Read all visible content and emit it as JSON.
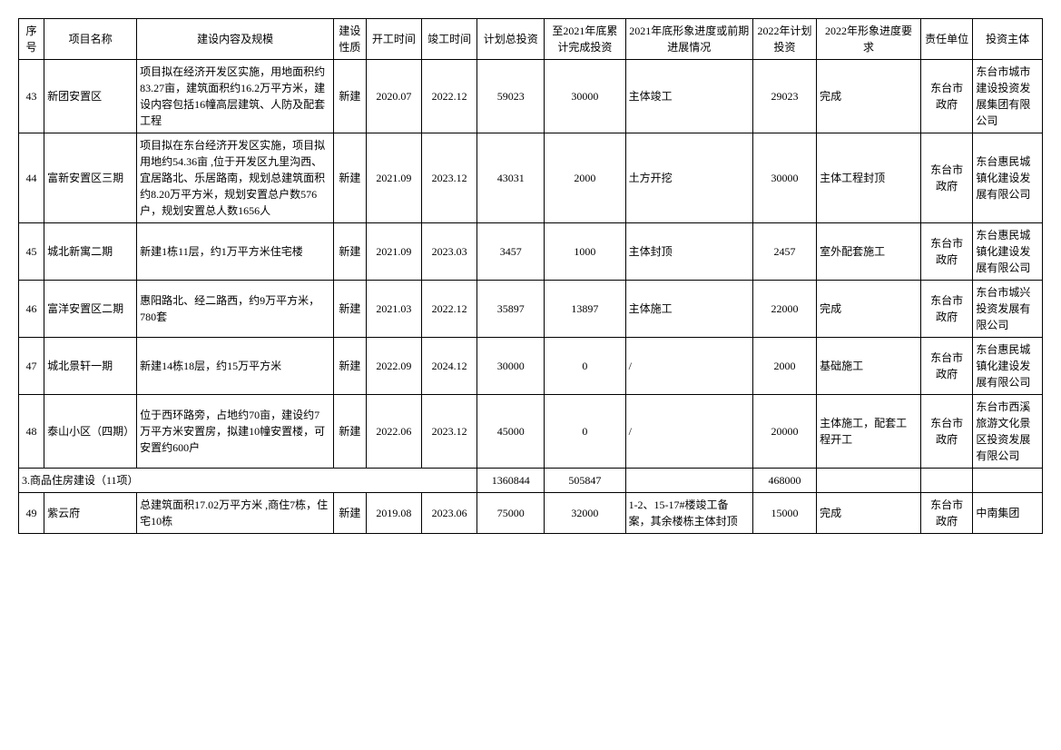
{
  "headers": {
    "seq": "序号",
    "name": "项目名称",
    "content": "建设内容及规模",
    "nature": "建设性质",
    "start": "开工时间",
    "end": "竣工时间",
    "total": "计划总投资",
    "done": "至2021年底累计完成投资",
    "progress": "2021年底形象进度或前期进展情况",
    "plan": "2022年计划投资",
    "req": "2022年形象进度要求",
    "resp": "责任单位",
    "invest": "投资主体"
  },
  "rows": [
    {
      "seq": "43",
      "name": "新团安置区",
      "content": "项目拟在经济开发区实施，用地面积约83.27亩，建筑面积约16.2万平方米，建设内容包括16幢高层建筑、人防及配套工程",
      "nature": "新建",
      "start": "2020.07",
      "end": "2022.12",
      "total": "59023",
      "done": "30000",
      "progress": "主体竣工",
      "plan": "29023",
      "req": "完成",
      "resp": "东台市 政府",
      "invest": "东台市城市建设投资发展集团有限公司"
    },
    {
      "seq": "44",
      "name": "富新安置区三期",
      "content": "项目拟在东台经济开发区实施，项目拟用地约54.36亩 ,位于开发区九里沟西、宜居路北、乐居路南，规划总建筑面积约8.20万平方米，规划安置总户数576户，规划安置总人数1656人",
      "nature": "新建",
      "start": "2021.09",
      "end": "2023.12",
      "total": "43031",
      "done": "2000",
      "progress": "土方开挖",
      "plan": "30000",
      "req": "主体工程封顶",
      "resp": "东台市 政府",
      "invest": "东台惠民城镇化建设发展有限公司"
    },
    {
      "seq": "45",
      "name": "城北新寓二期",
      "content": "新建1栋11层，约1万平方米住宅楼",
      "nature": "新建",
      "start": "2021.09",
      "end": "2023.03",
      "total": "3457",
      "done": "1000",
      "progress": "主体封顶",
      "plan": "2457",
      "req": "室外配套施工",
      "resp": "东台市 政府",
      "invest": "东台惠民城镇化建设发展有限公司"
    },
    {
      "seq": "46",
      "name": "富洋安置区二期",
      "content": "惠阳路北、经二路西，约9万平方米，780套",
      "nature": "新建",
      "start": "2021.03",
      "end": "2022.12",
      "total": "35897",
      "done": "13897",
      "progress": "主体施工",
      "plan": "22000",
      "req": "完成",
      "resp": "东台市 政府",
      "invest": "东台市城兴投资发展有限公司"
    },
    {
      "seq": "47",
      "name": "城北景轩一期",
      "content": "新建14栋18层，约15万平方米",
      "nature": "新建",
      "start": "2022.09",
      "end": "2024.12",
      "total": "30000",
      "done": "0",
      "progress": "/",
      "plan": "2000",
      "req": "基础施工",
      "resp": "东台市 政府",
      "invest": "东台惠民城镇化建设发展有限公司"
    },
    {
      "seq": "48",
      "name": "泰山小区（四期）",
      "content": "位于西环路旁，占地约70亩，建设约7万平方米安置房，拟建10幢安置楼，可安置约600户",
      "nature": "新建",
      "start": "2022.06",
      "end": "2023.12",
      "total": "45000",
      "done": "0",
      "progress": "/",
      "plan": "20000",
      "req": "主体施工，配套工程开工",
      "resp": "东台市 政府",
      "invest": "东台市西溪旅游文化景区投资发展有限公司"
    }
  ],
  "section": {
    "title": "3.商品住房建设（11项）",
    "total": "1360844",
    "done": "505847",
    "plan": "468000"
  },
  "rows2": [
    {
      "seq": "49",
      "name": "紫云府",
      "content": "总建筑面积17.02万平方米 ,商住7栋，住宅10栋",
      "nature": "新建",
      "start": "2019.08",
      "end": "2023.06",
      "total": "75000",
      "done": "32000",
      "progress": "1-2、15-17#楼竣工备案，其余楼栋主体封顶",
      "plan": "15000",
      "req": "完成",
      "resp": "东台市 政府",
      "invest": "中南集团"
    }
  ]
}
